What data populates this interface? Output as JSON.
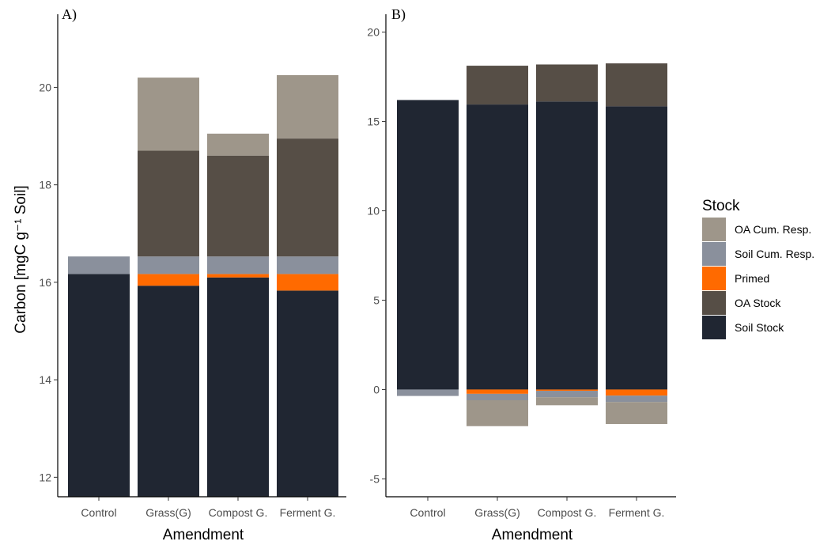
{
  "legend": {
    "title": "Stock",
    "items": [
      {
        "label": "OA Cum. Resp.",
        "color": "#9e968a"
      },
      {
        "label": "Soil Cum. Resp.",
        "color": "#8a909c"
      },
      {
        "label": "Primed",
        "color": "#ff6a00"
      },
      {
        "label": "OA Stock",
        "color": "#564e46"
      },
      {
        "label": "Soil Stock",
        "color": "#202632"
      }
    ]
  },
  "chart_data": [
    {
      "panel": "A)",
      "type": "bar",
      "stacked": true,
      "xlabel": "Amendment",
      "ylabel": "Carbon [mgC g⁻¹ Soil]",
      "ylim": [
        11.6,
        21.5
      ],
      "yticks": [
        12,
        14,
        16,
        18,
        20
      ],
      "categories": [
        "Control",
        "Grass(G)",
        "Compost G.",
        "Ferment G."
      ],
      "segments": [
        {
          "category": "Control",
          "stock": "Soil Stock",
          "from": 11.6,
          "to": 16.17
        },
        {
          "category": "Control",
          "stock": "Soil Cum. Resp.",
          "from": 16.17,
          "to": 16.53
        },
        {
          "category": "Grass(G)",
          "stock": "Soil Stock",
          "from": 11.6,
          "to": 15.93
        },
        {
          "category": "Grass(G)",
          "stock": "Primed",
          "from": 15.93,
          "to": 16.17
        },
        {
          "category": "Grass(G)",
          "stock": "Soil Cum. Resp.",
          "from": 16.17,
          "to": 16.53
        },
        {
          "category": "Grass(G)",
          "stock": "OA Stock",
          "from": 16.53,
          "to": 18.7
        },
        {
          "category": "Grass(G)",
          "stock": "OA Cum. Resp.",
          "from": 18.7,
          "to": 20.2
        },
        {
          "category": "Compost G.",
          "stock": "Soil Stock",
          "from": 11.6,
          "to": 16.1
        },
        {
          "category": "Compost G.",
          "stock": "Primed",
          "from": 16.1,
          "to": 16.17
        },
        {
          "category": "Compost G.",
          "stock": "Soil Cum. Resp.",
          "from": 16.17,
          "to": 16.53
        },
        {
          "category": "Compost G.",
          "stock": "OA Stock",
          "from": 16.53,
          "to": 18.6
        },
        {
          "category": "Compost G.",
          "stock": "OA Cum. Resp.",
          "from": 18.6,
          "to": 19.05
        },
        {
          "category": "Ferment G.",
          "stock": "Soil Stock",
          "from": 11.6,
          "to": 15.83
        },
        {
          "category": "Ferment G.",
          "stock": "Primed",
          "from": 15.83,
          "to": 16.17
        },
        {
          "category": "Ferment G.",
          "stock": "Soil Cum. Resp.",
          "from": 16.17,
          "to": 16.53
        },
        {
          "category": "Ferment G.",
          "stock": "OA Stock",
          "from": 16.53,
          "to": 18.95
        },
        {
          "category": "Ferment G.",
          "stock": "OA Cum. Resp.",
          "from": 18.95,
          "to": 20.25
        }
      ]
    },
    {
      "panel": "B)",
      "type": "bar",
      "stacked": true,
      "xlabel": "Amendment",
      "ylabel": "",
      "ylim": [
        -6,
        21
      ],
      "yticks": [
        -5,
        0,
        5,
        10,
        15,
        20
      ],
      "categories": [
        "Control",
        "Grass(G)",
        "Compost G.",
        "Ferment G."
      ],
      "segments": [
        {
          "category": "Control",
          "stock": "Soil Stock",
          "from": 0,
          "to": 16.2
        },
        {
          "category": "Control",
          "stock": "Soil Cum. Resp.",
          "from": 0,
          "to": -0.36
        },
        {
          "category": "Grass(G)",
          "stock": "Soil Stock",
          "from": 0,
          "to": 15.95
        },
        {
          "category": "Grass(G)",
          "stock": "OA Stock",
          "from": 15.95,
          "to": 18.12
        },
        {
          "category": "Grass(G)",
          "stock": "Primed",
          "from": 0,
          "to": -0.24
        },
        {
          "category": "Grass(G)",
          "stock": "Soil Cum. Resp.",
          "from": -0.24,
          "to": -0.6
        },
        {
          "category": "Grass(G)",
          "stock": "OA Cum. Resp.",
          "from": -0.6,
          "to": -2.05
        },
        {
          "category": "Compost G.",
          "stock": "Soil Stock",
          "from": 0,
          "to": 16.12
        },
        {
          "category": "Compost G.",
          "stock": "OA Stock",
          "from": 16.12,
          "to": 18.19
        },
        {
          "category": "Compost G.",
          "stock": "Primed",
          "from": 0,
          "to": -0.07
        },
        {
          "category": "Compost G.",
          "stock": "Soil Cum. Resp.",
          "from": -0.07,
          "to": -0.43
        },
        {
          "category": "Compost G.",
          "stock": "OA Cum. Resp.",
          "from": -0.43,
          "to": -0.88
        },
        {
          "category": "Ferment G.",
          "stock": "Soil Stock",
          "from": 0,
          "to": 15.85
        },
        {
          "category": "Ferment G.",
          "stock": "OA Stock",
          "from": 15.85,
          "to": 18.25
        },
        {
          "category": "Ferment G.",
          "stock": "Primed",
          "from": 0,
          "to": -0.34
        },
        {
          "category": "Ferment G.",
          "stock": "Soil Cum. Resp.",
          "from": -0.34,
          "to": -0.7
        },
        {
          "category": "Ferment G.",
          "stock": "OA Cum. Resp.",
          "from": -0.7,
          "to": -1.93
        }
      ]
    }
  ]
}
